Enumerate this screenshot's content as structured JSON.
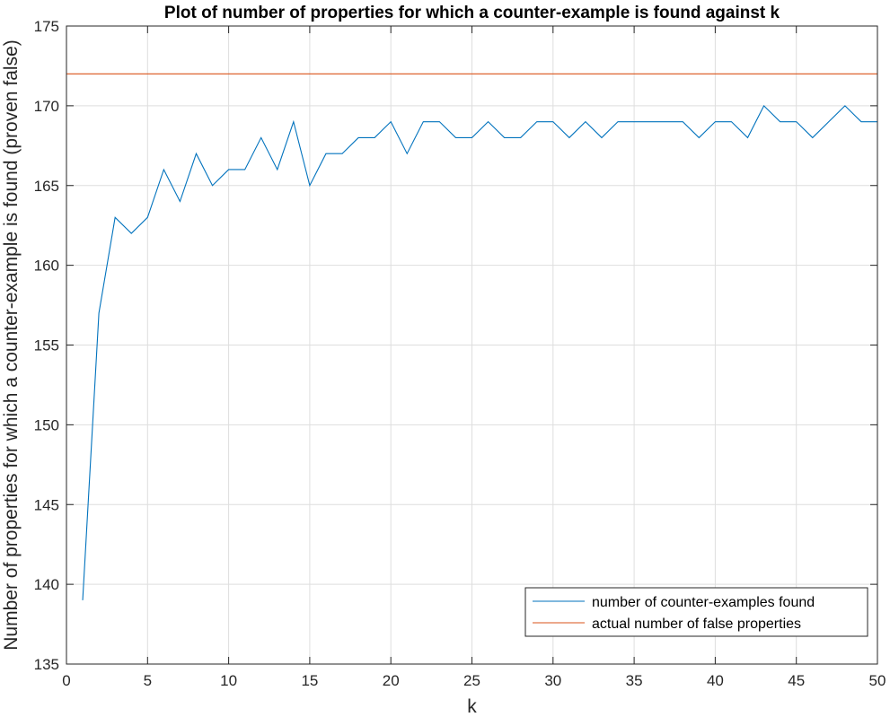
{
  "chart_data": {
    "type": "line",
    "title": "Plot of number of properties for which a counter-example is found against k",
    "xlabel": "k",
    "ylabel": "Number of properties for which a counter-example is found (proven false)",
    "xlim": [
      0,
      50
    ],
    "ylim": [
      135,
      175
    ],
    "xticks": [
      0,
      5,
      10,
      15,
      20,
      25,
      30,
      35,
      40,
      45,
      50
    ],
    "yticks": [
      135,
      140,
      145,
      150,
      155,
      160,
      165,
      170,
      175
    ],
    "grid": true,
    "legend_position": "bottom-right",
    "series": [
      {
        "name": "number of counter-examples found",
        "color": "#0072BD",
        "x": [
          1,
          2,
          3,
          4,
          5,
          6,
          7,
          8,
          9,
          10,
          11,
          12,
          13,
          14,
          15,
          16,
          17,
          18,
          19,
          20,
          21,
          22,
          23,
          24,
          25,
          26,
          27,
          28,
          29,
          30,
          31,
          32,
          33,
          34,
          35,
          36,
          37,
          38,
          39,
          40,
          41,
          42,
          43,
          44,
          45,
          46,
          47,
          48,
          49,
          50
        ],
        "y": [
          139,
          157,
          163,
          162,
          163,
          166,
          164,
          167,
          165,
          166,
          166,
          168,
          166,
          169,
          165,
          167,
          167,
          168,
          168,
          169,
          167,
          169,
          169,
          168,
          168,
          169,
          168,
          168,
          169,
          169,
          168,
          169,
          168,
          169,
          169,
          169,
          169,
          169,
          168,
          169,
          169,
          168,
          170,
          169,
          169,
          168,
          169,
          170,
          169,
          169
        ]
      },
      {
        "name": "actual number of false properties",
        "color": "#D95319",
        "x": [
          0,
          50
        ],
        "y": [
          172,
          172
        ]
      }
    ]
  }
}
